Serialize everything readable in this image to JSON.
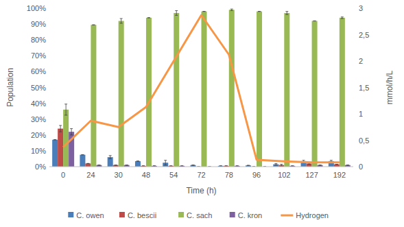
{
  "chart_data": {
    "type": "bar",
    "x_label": "Time (h)",
    "y_label": "Population",
    "y2_label": "mmol/h/L",
    "categories": [
      "0",
      "24",
      "30",
      "48",
      "54",
      "72",
      "78",
      "96",
      "102",
      "127",
      "192"
    ],
    "ylim": [
      0,
      100
    ],
    "yticks": [
      {
        "value": 0,
        "label": "0%"
      },
      {
        "value": 10,
        "label": "10%"
      },
      {
        "value": 20,
        "label": "20%"
      },
      {
        "value": 30,
        "label": "30%"
      },
      {
        "value": 40,
        "label": "40%"
      },
      {
        "value": 50,
        "label": "50%"
      },
      {
        "value": 60,
        "label": "60%"
      },
      {
        "value": 70,
        "label": "70%"
      },
      {
        "value": 80,
        "label": "80%"
      },
      {
        "value": 90,
        "label": "90%"
      },
      {
        "value": 100,
        "label": "100%"
      }
    ],
    "y2lim": [
      0,
      3
    ],
    "y2ticks": [
      0,
      {
        "value": 0.5,
        "label": "0,5"
      },
      1,
      {
        "value": 1.5,
        "label": "1,5"
      },
      2,
      {
        "value": 2.5,
        "label": "2,5"
      },
      3
    ],
    "grid": false,
    "legend": "bottom",
    "series": [
      {
        "name": "C. owen",
        "type": "bar",
        "color": "#4a7ebb",
        "values": [
          17,
          7.5,
          6,
          3.5,
          2.5,
          1,
          0.5,
          0.8,
          1.5,
          3.5,
          3.5
        ],
        "errors": [
          0,
          0,
          1,
          0,
          1.5,
          0,
          0,
          0,
          0.5,
          0.5,
          0.5
        ]
      },
      {
        "name": "C. bescii",
        "type": "bar",
        "color": "#be4b48",
        "values": [
          24,
          2,
          1,
          0.5,
          0.5,
          0,
          0.5,
          0,
          1,
          2,
          1.5
        ],
        "errors": [
          2,
          0,
          0,
          0,
          0,
          0,
          0,
          0,
          0.5,
          0.5,
          0
        ]
      },
      {
        "name": "C. sach",
        "type": "bar",
        "color": "#98b954",
        "values": [
          36,
          89.5,
          92,
          94,
          97,
          98,
          99,
          98,
          97,
          92,
          94
        ],
        "errors": [
          3.5,
          0,
          1.5,
          0,
          1.5,
          0,
          0.5,
          0,
          1,
          0,
          0.5
        ]
      },
      {
        "name": "C. kron",
        "type": "bar",
        "color": "#7d60a0",
        "values": [
          22,
          1,
          1,
          0.5,
          0.5,
          0,
          0.5,
          0,
          0.5,
          1,
          1
        ],
        "errors": [
          2,
          0,
          0,
          0,
          0,
          0,
          0,
          0,
          0,
          0,
          0
        ]
      },
      {
        "name": "Hydrogen",
        "type": "line",
        "axis": "y2",
        "color": "#f79646",
        "values": [
          0.37,
          0.87,
          0.75,
          1.13,
          2.0,
          2.87,
          2.12,
          0.13,
          0.1,
          0.08,
          0.08
        ]
      }
    ]
  }
}
